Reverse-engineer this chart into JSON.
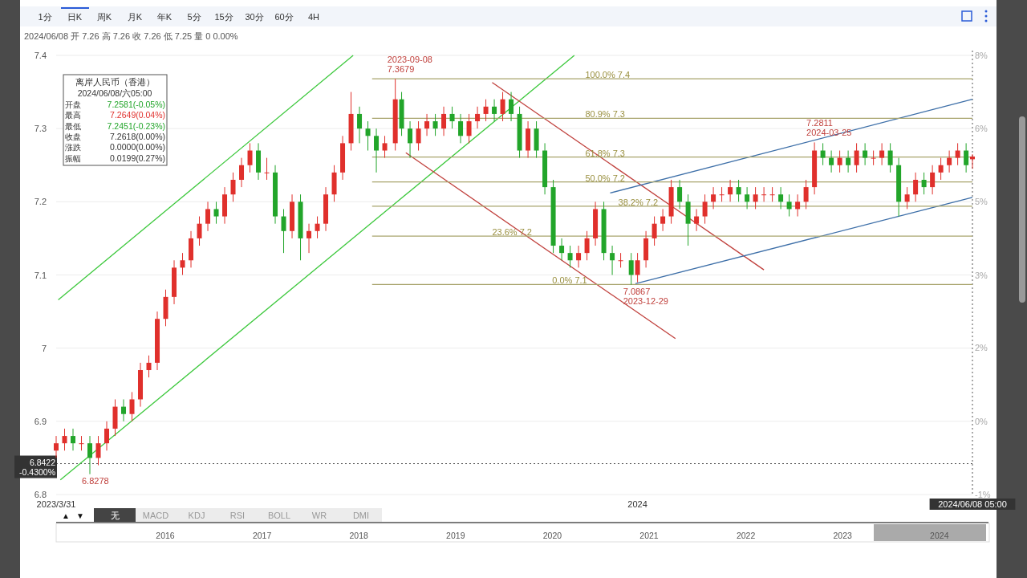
{
  "chart_data": {
    "type": "candlestick",
    "x": [
      "2023-03-31",
      "2023-04-04",
      "2023-04-08",
      "2023-04-12",
      "2023-04-16",
      "2023-04-20",
      "2023-04-24",
      "2023-04-28",
      "2023-05-02",
      "2023-05-06",
      "2023-05-10",
      "2023-05-14",
      "2023-05-18",
      "2023-05-22",
      "2023-05-26",
      "2023-05-30",
      "2023-06-03",
      "2023-06-07",
      "2023-06-11",
      "2023-06-15",
      "2023-06-19",
      "2023-06-23",
      "2023-06-27",
      "2023-07-01",
      "2023-07-05",
      "2023-07-09",
      "2023-07-13",
      "2023-07-17",
      "2023-07-21",
      "2023-07-25",
      "2023-07-29",
      "2023-08-02",
      "2023-08-06",
      "2023-08-10",
      "2023-08-14",
      "2023-08-18",
      "2023-08-22",
      "2023-08-26",
      "2023-08-30",
      "2023-09-03",
      "2023-09-08",
      "2023-09-11",
      "2023-09-15",
      "2023-09-19",
      "2023-09-23",
      "2023-09-27",
      "2023-10-01",
      "2023-10-05",
      "2023-10-09",
      "2023-10-13",
      "2023-10-17",
      "2023-10-21",
      "2023-10-25",
      "2023-10-29",
      "2023-11-02",
      "2023-11-06",
      "2023-11-10",
      "2023-11-14",
      "2023-11-18",
      "2023-11-22",
      "2023-11-26",
      "2023-11-30",
      "2023-12-04",
      "2023-12-08",
      "2023-12-12",
      "2023-12-16",
      "2023-12-20",
      "2023-12-24",
      "2023-12-29",
      "2024-01-01",
      "2024-01-05",
      "2024-01-09",
      "2024-01-13",
      "2024-01-17",
      "2024-01-21",
      "2024-01-25",
      "2024-01-29",
      "2024-02-02",
      "2024-02-06",
      "2024-02-10",
      "2024-02-14",
      "2024-02-18",
      "2024-02-22",
      "2024-02-26",
      "2024-03-01",
      "2024-03-05",
      "2024-03-09",
      "2024-03-13",
      "2024-03-17",
      "2024-03-21",
      "2024-03-25",
      "2024-03-29",
      "2024-04-02",
      "2024-04-06",
      "2024-04-10",
      "2024-04-14",
      "2024-04-18",
      "2024-04-22",
      "2024-04-26",
      "2024-04-30",
      "2024-05-04",
      "2024-05-08",
      "2024-05-12",
      "2024-05-16",
      "2024-05-20",
      "2024-05-24",
      "2024-05-28",
      "2024-06-01",
      "2024-06-05",
      "2024-06-08"
    ],
    "ohlc": [
      [
        6.86,
        6.88,
        6.85,
        6.87
      ],
      [
        6.87,
        6.89,
        6.86,
        6.88
      ],
      [
        6.88,
        6.89,
        6.86,
        6.87
      ],
      [
        6.87,
        6.88,
        6.86,
        6.87
      ],
      [
        6.87,
        6.88,
        6.8278,
        6.85
      ],
      [
        6.85,
        6.88,
        6.84,
        6.87
      ],
      [
        6.87,
        6.9,
        6.86,
        6.89
      ],
      [
        6.89,
        6.93,
        6.88,
        6.92
      ],
      [
        6.92,
        6.93,
        6.9,
        6.91
      ],
      [
        6.91,
        6.94,
        6.9,
        6.93
      ],
      [
        6.93,
        6.98,
        6.92,
        6.97
      ],
      [
        6.97,
        6.99,
        6.96,
        6.98
      ],
      [
        6.98,
        7.05,
        6.97,
        7.04
      ],
      [
        7.04,
        7.08,
        7.03,
        7.07
      ],
      [
        7.07,
        7.12,
        7.06,
        7.11
      ],
      [
        7.11,
        7.13,
        7.1,
        7.12
      ],
      [
        7.12,
        7.16,
        7.11,
        7.15
      ],
      [
        7.15,
        7.18,
        7.14,
        7.17
      ],
      [
        7.17,
        7.2,
        7.16,
        7.19
      ],
      [
        7.19,
        7.2,
        7.17,
        7.18
      ],
      [
        7.18,
        7.22,
        7.17,
        7.21
      ],
      [
        7.21,
        7.24,
        7.2,
        7.23
      ],
      [
        7.23,
        7.26,
        7.22,
        7.25
      ],
      [
        7.25,
        7.28,
        7.24,
        7.27
      ],
      [
        7.27,
        7.28,
        7.23,
        7.24
      ],
      [
        7.24,
        7.26,
        7.23,
        7.24
      ],
      [
        7.24,
        7.25,
        7.17,
        7.18
      ],
      [
        7.18,
        7.19,
        7.13,
        7.16
      ],
      [
        7.16,
        7.21,
        7.15,
        7.2
      ],
      [
        7.2,
        7.21,
        7.12,
        7.15
      ],
      [
        7.15,
        7.17,
        7.13,
        7.16
      ],
      [
        7.16,
        7.18,
        7.15,
        7.17
      ],
      [
        7.17,
        7.22,
        7.16,
        7.21
      ],
      [
        7.21,
        7.25,
        7.2,
        7.24
      ],
      [
        7.24,
        7.29,
        7.23,
        7.28
      ],
      [
        7.28,
        7.35,
        7.27,
        7.32
      ],
      [
        7.32,
        7.33,
        7.28,
        7.3
      ],
      [
        7.3,
        7.31,
        7.27,
        7.29
      ],
      [
        7.29,
        7.3,
        7.24,
        7.27
      ],
      [
        7.27,
        7.29,
        7.26,
        7.28
      ],
      [
        7.28,
        7.3679,
        7.27,
        7.34
      ],
      [
        7.34,
        7.35,
        7.29,
        7.3
      ],
      [
        7.3,
        7.31,
        7.26,
        7.28
      ],
      [
        7.28,
        7.31,
        7.27,
        7.3
      ],
      [
        7.3,
        7.32,
        7.29,
        7.31
      ],
      [
        7.31,
        7.32,
        7.29,
        7.3
      ],
      [
        7.3,
        7.33,
        7.29,
        7.32
      ],
      [
        7.32,
        7.33,
        7.3,
        7.31
      ],
      [
        7.31,
        7.32,
        7.28,
        7.29
      ],
      [
        7.29,
        7.32,
        7.28,
        7.31
      ],
      [
        7.31,
        7.33,
        7.3,
        7.32
      ],
      [
        7.32,
        7.34,
        7.31,
        7.33
      ],
      [
        7.33,
        7.34,
        7.31,
        7.32
      ],
      [
        7.32,
        7.35,
        7.31,
        7.34
      ],
      [
        7.34,
        7.35,
        7.31,
        7.32
      ],
      [
        7.32,
        7.33,
        7.26,
        7.27
      ],
      [
        7.27,
        7.31,
        7.26,
        7.3
      ],
      [
        7.3,
        7.31,
        7.26,
        7.27
      ],
      [
        7.27,
        7.28,
        7.21,
        7.22
      ],
      [
        7.22,
        7.23,
        7.13,
        7.14
      ],
      [
        7.14,
        7.15,
        7.12,
        7.13
      ],
      [
        7.13,
        7.14,
        7.11,
        7.12
      ],
      [
        7.12,
        7.14,
        7.11,
        7.13
      ],
      [
        7.13,
        7.16,
        7.12,
        7.15
      ],
      [
        7.15,
        7.2,
        7.14,
        7.19
      ],
      [
        7.19,
        7.2,
        7.12,
        7.13
      ],
      [
        7.13,
        7.14,
        7.1,
        7.12
      ],
      [
        7.12,
        7.13,
        7.11,
        7.12
      ],
      [
        7.12,
        7.13,
        7.0867,
        7.1
      ],
      [
        7.1,
        7.13,
        7.09,
        7.12
      ],
      [
        7.12,
        7.16,
        7.11,
        7.15
      ],
      [
        7.15,
        7.18,
        7.14,
        7.17
      ],
      [
        7.17,
        7.19,
        7.16,
        7.18
      ],
      [
        7.18,
        7.23,
        7.17,
        7.22
      ],
      [
        7.22,
        7.23,
        7.19,
        7.2
      ],
      [
        7.2,
        7.21,
        7.14,
        7.17
      ],
      [
        7.17,
        7.19,
        7.16,
        7.18
      ],
      [
        7.18,
        7.21,
        7.17,
        7.2
      ],
      [
        7.2,
        7.22,
        7.19,
        7.21
      ],
      [
        7.21,
        7.22,
        7.2,
        7.21
      ],
      [
        7.21,
        7.23,
        7.2,
        7.22
      ],
      [
        7.22,
        7.23,
        7.2,
        7.21
      ],
      [
        7.21,
        7.22,
        7.19,
        7.2
      ],
      [
        7.2,
        7.22,
        7.19,
        7.21
      ],
      [
        7.21,
        7.22,
        7.2,
        7.21
      ],
      [
        7.21,
        7.22,
        7.2,
        7.21
      ],
      [
        7.21,
        7.22,
        7.19,
        7.2
      ],
      [
        7.2,
        7.21,
        7.18,
        7.19
      ],
      [
        7.19,
        7.21,
        7.18,
        7.2
      ],
      [
        7.2,
        7.23,
        7.19,
        7.22
      ],
      [
        7.22,
        7.2811,
        7.21,
        7.27
      ],
      [
        7.27,
        7.28,
        7.25,
        7.26
      ],
      [
        7.26,
        7.27,
        7.24,
        7.25
      ],
      [
        7.25,
        7.27,
        7.24,
        7.26
      ],
      [
        7.26,
        7.27,
        7.24,
        7.25
      ],
      [
        7.25,
        7.28,
        7.24,
        7.27
      ],
      [
        7.27,
        7.28,
        7.25,
        7.26
      ],
      [
        7.26,
        7.27,
        7.25,
        7.26
      ],
      [
        7.26,
        7.28,
        7.25,
        7.27
      ],
      [
        7.27,
        7.28,
        7.24,
        7.25
      ],
      [
        7.25,
        7.26,
        7.18,
        7.2
      ],
      [
        7.2,
        7.22,
        7.19,
        7.21
      ],
      [
        7.21,
        7.24,
        7.2,
        7.23
      ],
      [
        7.23,
        7.24,
        7.21,
        7.22
      ],
      [
        7.22,
        7.25,
        7.21,
        7.24
      ],
      [
        7.24,
        7.26,
        7.23,
        7.25
      ],
      [
        7.25,
        7.27,
        7.24,
        7.26
      ],
      [
        7.26,
        7.28,
        7.25,
        7.27
      ],
      [
        7.27,
        7.28,
        7.24,
        7.25
      ],
      [
        7.2581,
        7.2649,
        7.2451,
        7.2618
      ]
    ],
    "series": [
      {
        "type": "line",
        "color": "#3cc83c",
        "x": [
          "2023-04-01",
          "2023-08-19"
        ],
        "values": [
          7.066,
          7.4
        ]
      },
      {
        "type": "line",
        "color": "#3cc83c",
        "x": [
          "2023-04-02",
          "2023-12-02"
        ],
        "values": [
          6.82,
          7.4
        ]
      },
      {
        "type": "line",
        "color": "#c0403c",
        "x": [
          "2023-10-24",
          "2024-03-01"
        ],
        "values": [
          7.363,
          7.107
        ]
      },
      {
        "type": "line",
        "color": "#c0403c",
        "x": [
          "2023-09-13",
          "2024-01-19"
        ],
        "values": [
          7.267,
          7.013
        ]
      },
      {
        "type": "line",
        "color": "#3d6fa8",
        "x": [
          "2023-12-19",
          "2024-06-08"
        ],
        "values": [
          7.212,
          7.34
        ]
      },
      {
        "type": "line",
        "color": "#3d6fa8",
        "x": [
          "2023-12-31",
          "2024-06-08"
        ],
        "values": [
          7.088,
          7.206
        ]
      },
      {
        "type": "line",
        "color": "#a8a46c",
        "name": "100.0% 7.4",
        "x": [
          "2023-08-28",
          "2024-06-08"
        ],
        "values": [
          7.368,
          7.368
        ]
      },
      {
        "type": "line",
        "color": "#a8a46c",
        "name": "80.9% 7.3",
        "x": [
          "2023-08-28",
          "2024-06-08"
        ],
        "values": [
          7.314,
          7.314
        ]
      },
      {
        "type": "line",
        "color": "#a8a46c",
        "name": "61.8% 7.3",
        "x": [
          "2023-08-28",
          "2024-06-08"
        ],
        "values": [
          7.261,
          7.261
        ]
      },
      {
        "type": "line",
        "color": "#a8a46c",
        "name": "50.0% 7.2",
        "x": [
          "2023-08-28",
          "2024-06-08"
        ],
        "values": [
          7.227,
          7.227
        ]
      },
      {
        "type": "line",
        "color": "#a8a46c",
        "name": "38.2% 7.2",
        "x": [
          "2023-08-28",
          "2024-06-08"
        ],
        "values": [
          7.194,
          7.194
        ]
      },
      {
        "type": "line",
        "color": "#a8a46c",
        "name": "23.6% 7.2",
        "x": [
          "2023-08-28",
          "2024-06-08"
        ],
        "values": [
          7.153,
          7.153
        ]
      },
      {
        "type": "line",
        "color": "#a8a46c",
        "name": "0.0% 7.1",
        "x": [
          "2023-08-28",
          "2024-06-08"
        ],
        "values": [
          7.087,
          7.087
        ]
      }
    ],
    "xlim": [
      "2023-03-31",
      "2024-06-08"
    ],
    "xticks": [
      {
        "value": "2023-03-31",
        "label": "2023/3/31"
      },
      {
        "value": "2024-01-01",
        "label": "2024"
      },
      {
        "value": "2024-06-08",
        "label": "2024/06/08 05:00"
      }
    ],
    "ylim": [
      6.8,
      7.4
    ],
    "yticks": [
      6.8,
      6.9,
      7,
      7.1,
      7.2,
      7.3,
      7.4
    ],
    "y2lim": [
      -1.05,
      7.69
    ],
    "y2ticks": [
      {
        "value": -1.05,
        "label": "-1%"
      },
      {
        "value": 0.41,
        "label": "0%"
      },
      {
        "value": 1.87,
        "label": "2%"
      },
      {
        "value": 3.32,
        "label": "3%"
      },
      {
        "value": 4.78,
        "label": "5%"
      },
      {
        "value": 6.23,
        "label": "6%"
      },
      {
        "value": 7.69,
        "label": "8%"
      }
    ],
    "grid": "y",
    "ref_lines": [
      {
        "axis": "y",
        "value": 6.8422,
        "label": "6.8422",
        "color": "#555555",
        "line_style": "dotted"
      },
      {
        "axis": "x",
        "value": "2024-06-08",
        "color": "#555555",
        "line_style": "dotted"
      }
    ],
    "annotations": [
      "1分",
      "日K",
      "周K",
      "月K",
      "年K",
      "5分",
      "15分",
      "30分",
      "60分",
      "4H",
      "2024/06/08 开 7.26 高 7.26 收 7.26 低 7.25 量 0 0.00%",
      "离岸人民币（香港）",
      "2024/06/08/六05:00",
      "开盘",
      "7.2581(-0.05%)",
      "最高",
      "7.2649(0.04%)",
      "最低",
      "7.2451(-0.23%)",
      "收盘",
      "7.2618(0.00%)",
      "涨跌",
      "0.0000(0.00%)",
      "振幅",
      "0.0199(0.27%)",
      "▲",
      "▼",
      "无",
      "MACD",
      "KDJ",
      "RSI",
      "BOLL",
      "WR",
      "DMI",
      "2016",
      "2017",
      "2018",
      "2019",
      "2020",
      "2021",
      "2022",
      "2023",
      "2024",
      "-0.4300%",
      {
        "text": "2023-09-08",
        "x": "2023-09-08",
        "y": 7.3679
      },
      {
        "text": "7.3679",
        "x": "2023-09-08",
        "y": 7.3679
      },
      {
        "text": "7.2811",
        "x": "2024-03-25",
        "y": 7.2811
      },
      {
        "text": "2024-03-25",
        "x": "2024-03-25",
        "y": 7.2811
      },
      {
        "text": "7.0867",
        "x": "2023-12-29",
        "y": 7.0867
      },
      {
        "text": "2023-12-29",
        "x": "2023-12-29",
        "y": 7.0867
      },
      {
        "text": "6.8278",
        "x": "2023-04-16",
        "y": 6.8278
      }
    ]
  }
}
